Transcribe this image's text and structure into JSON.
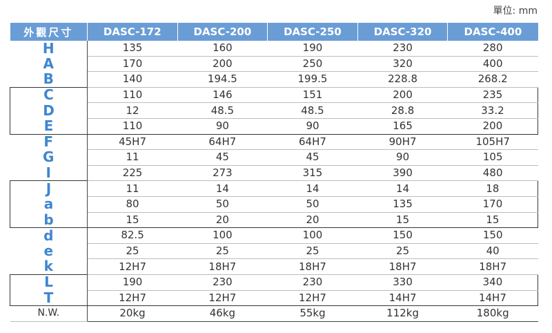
{
  "unit": "單位: mm",
  "header": [
    "外觀尺寸",
    "DASC-172",
    "DASC-200",
    "DASC-250",
    "DASC-320",
    "DASC-400"
  ],
  "groups": [
    {
      "boxed": false,
      "rows": [
        {
          "label": "H",
          "values": [
            "135",
            "160",
            "190",
            "230",
            "280"
          ]
        },
        {
          "label": "A",
          "values": [
            "170",
            "200",
            "250",
            "320",
            "400"
          ]
        },
        {
          "label": "B",
          "values": [
            "140",
            "194.5",
            "199.5",
            "228.8",
            "268.2"
          ]
        }
      ]
    },
    {
      "boxed": true,
      "rows": [
        {
          "label": "C",
          "values": [
            "110",
            "146",
            "151",
            "200",
            "235"
          ]
        },
        {
          "label": "D",
          "values": [
            "12",
            "48.5",
            "48.5",
            "28.8",
            "33.2"
          ]
        },
        {
          "label": "E",
          "values": [
            "110",
            "90",
            "90",
            "165",
            "200"
          ]
        }
      ]
    },
    {
      "boxed": false,
      "rows": [
        {
          "label": "F",
          "values": [
            "45H7",
            "64H7",
            "64H7",
            "90H7",
            "105H7"
          ]
        },
        {
          "label": "G",
          "values": [
            "11",
            "45",
            "45",
            "90",
            "105"
          ]
        },
        {
          "label": "I",
          "values": [
            "225",
            "273",
            "315",
            "390",
            "480"
          ]
        }
      ]
    },
    {
      "boxed": true,
      "rows": [
        {
          "label": "J",
          "values": [
            "11",
            "14",
            "14",
            "14",
            "18"
          ]
        },
        {
          "label": "a",
          "values": [
            "80",
            "50",
            "50",
            "135",
            "170"
          ]
        },
        {
          "label": "b",
          "values": [
            "15",
            "20",
            "20",
            "15",
            "15"
          ]
        }
      ]
    },
    {
      "boxed": false,
      "rows": [
        {
          "label": "d",
          "values": [
            "82.5",
            "100",
            "100",
            "150",
            "150"
          ]
        },
        {
          "label": "e",
          "values": [
            "25",
            "25",
            "25",
            "25",
            "40"
          ]
        },
        {
          "label": "k",
          "values": [
            "12H7",
            "18H7",
            "18H7",
            "18H7",
            "18H7"
          ]
        }
      ]
    },
    {
      "boxed": true,
      "rows": [
        {
          "label": "L",
          "values": [
            "190",
            "230",
            "230",
            "330",
            "340"
          ]
        },
        {
          "label": "T",
          "values": [
            "12H7",
            "12H7",
            "12H7",
            "14H7",
            "14H7"
          ]
        }
      ]
    }
  ],
  "nw": {
    "label": "N.W.",
    "values": [
      "20kg",
      "46kg",
      "55kg",
      "112kg",
      "180kg"
    ]
  }
}
